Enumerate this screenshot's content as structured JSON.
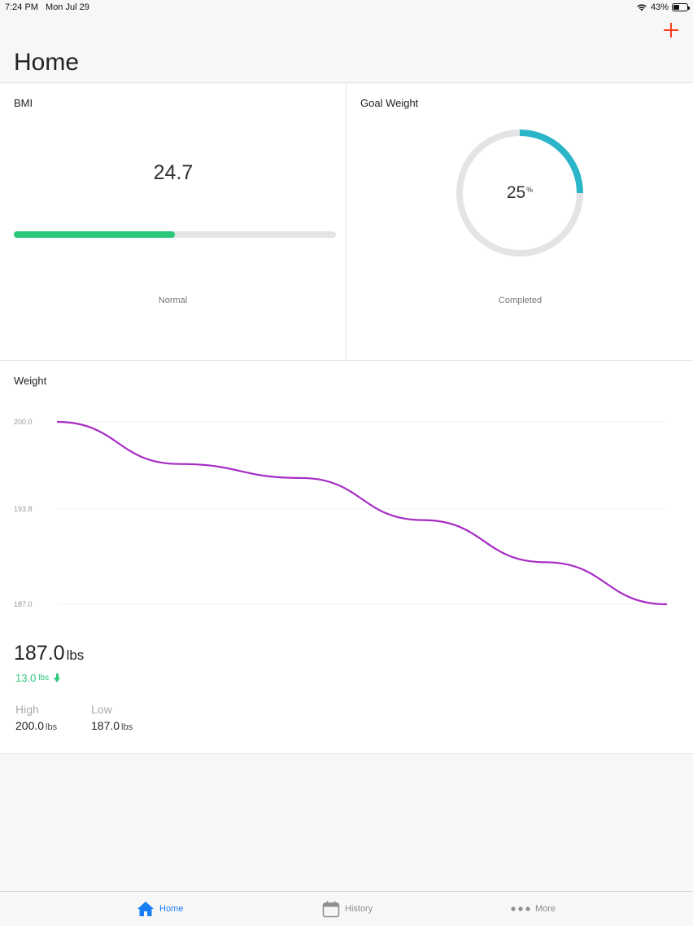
{
  "status": {
    "time": "7:24 PM",
    "date": "Mon Jul 29",
    "battery": "43%",
    "battery_level": 0.43
  },
  "nav": {
    "title": "Home",
    "add_icon": "plus-icon"
  },
  "bmi": {
    "title": "BMI",
    "value": "24.7",
    "category": "Normal",
    "bar_fraction": 0.5,
    "bar_color": "#2bc77b"
  },
  "goal": {
    "title": "Goal Weight",
    "percent": "25",
    "percent_sign": "%",
    "progress": 0.25,
    "caption": "Completed",
    "ring_color": "#2bb5c9"
  },
  "weight": {
    "title": "Weight",
    "current": "187.0",
    "unit": "lbs",
    "change": "13.0",
    "change_unit": "lbs",
    "high_label": "High",
    "high_value": "200.0",
    "high_unit": "lbs",
    "low_label": "Low",
    "low_value": "187.0",
    "low_unit": "lbs"
  },
  "chart_data": {
    "type": "line",
    "y_ticks": [
      "200.0",
      "193.8",
      "187.0"
    ],
    "ylim": [
      187.0,
      200.0
    ],
    "series": [
      {
        "values": [
          200.0,
          197.0,
          196.0,
          193.0,
          190.0,
          187.0
        ],
        "color": "#a62cc4"
      }
    ]
  },
  "tabs": [
    {
      "label": "Home",
      "icon": "house-icon",
      "active": true
    },
    {
      "label": "History",
      "icon": "calendar-icon",
      "active": false
    },
    {
      "label": "More",
      "icon": "ellipsis-icon",
      "active": false
    }
  ]
}
